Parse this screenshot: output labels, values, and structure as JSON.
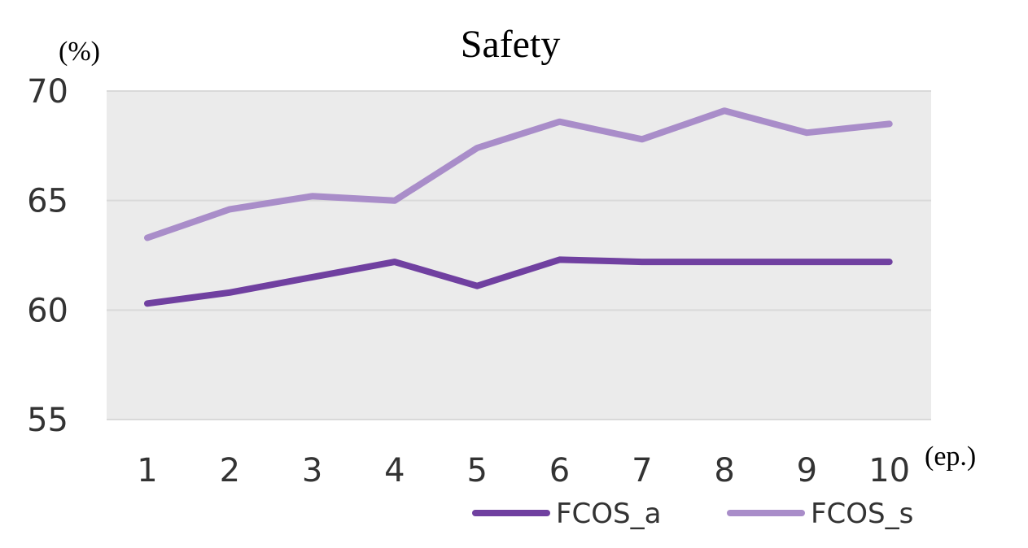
{
  "chart_data": {
    "type": "line",
    "title": "Safety",
    "y_unit": "(%)",
    "x_unit": "(ep.)",
    "xlabel": "",
    "ylabel": "",
    "categories": [
      "1",
      "2",
      "3",
      "4",
      "5",
      "6",
      "7",
      "8",
      "9",
      "10"
    ],
    "ylim": [
      55,
      70
    ],
    "yticks": [
      "55",
      "60",
      "65",
      "70"
    ],
    "grid": true,
    "legend_position": "bottom-right",
    "plot_background": "#ebebeb",
    "gridline_color": "#d9d9d9",
    "series": [
      {
        "name": "FCOS_a",
        "color": "#7040a0",
        "values": [
          60.3,
          60.8,
          61.5,
          62.2,
          61.1,
          62.3,
          62.2,
          62.2,
          62.2,
          62.2
        ]
      },
      {
        "name": "FCOS_s",
        "color": "#a98dc9",
        "values": [
          63.3,
          64.6,
          65.2,
          65.0,
          67.4,
          68.6,
          67.8,
          69.1,
          68.1,
          68.5
        ]
      }
    ]
  }
}
